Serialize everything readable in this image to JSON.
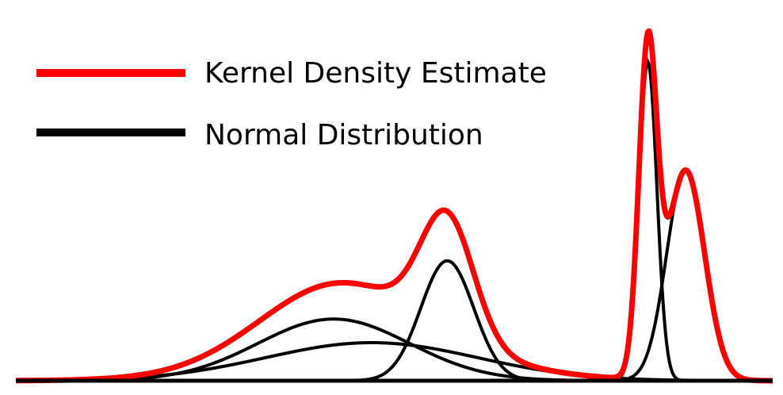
{
  "chart_data": {
    "type": "line",
    "title": "",
    "xlabel": "",
    "ylabel": "",
    "axes_visible": false,
    "grid": false,
    "legend_position": "top-left",
    "xlim": [
      -5,
      5
    ],
    "ylim": [
      0,
      1.0
    ],
    "baseline": 0,
    "legend": [
      {
        "label": "Kernel Density Estimate",
        "color": "#ff0000"
      },
      {
        "label": "Normal Distribution",
        "color": "#000000"
      }
    ],
    "kde": {
      "name": "Kernel Density Estimate",
      "color": "#ff0000"
    },
    "components": [
      {
        "name": "Normal Distribution",
        "mean": -0.8,
        "sd": 1.0,
        "amplitude": 0.162
      },
      {
        "name": "Normal Distribution",
        "mean": 0.7,
        "sd": 0.35,
        "amplitude": 0.315
      },
      {
        "name": "Normal Distribution",
        "mean": 3.35,
        "sd": 0.12,
        "amplitude": 0.838
      },
      {
        "name": "Normal Distribution",
        "mean": 3.85,
        "sd": 0.25,
        "amplitude": 0.552
      },
      {
        "name": "Normal Distribution",
        "mean": -0.3,
        "sd": 1.4,
        "amplitude": 0.1
      }
    ]
  }
}
